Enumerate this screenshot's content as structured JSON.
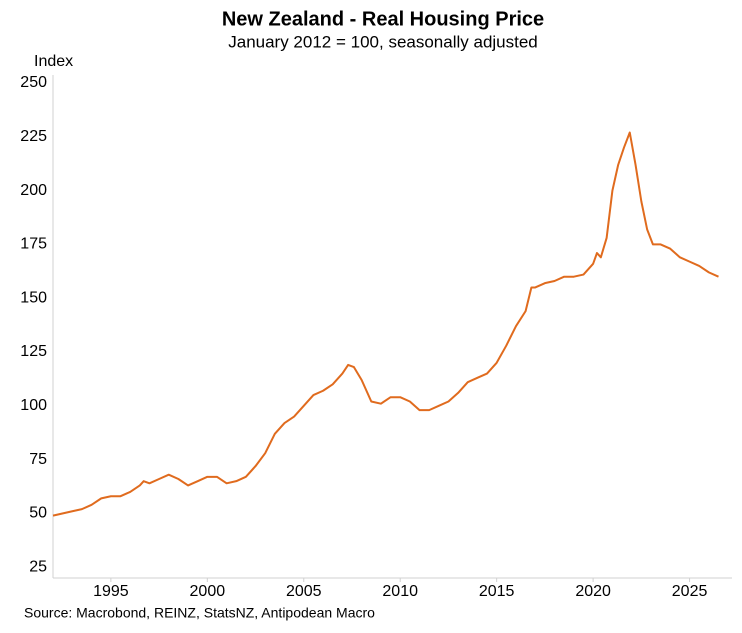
{
  "chart_data": {
    "type": "line",
    "title": "New Zealand - Real Housing Price",
    "subtitle": "January 2012 = 100, seasonally adjusted",
    "y_axis_label": "Index",
    "source": "Source: Macrobond, REINZ, StatsNZ, Antipodean Macro",
    "x": [
      1992.0,
      1993.0,
      1993.5,
      1994.0,
      1994.5,
      1995.0,
      1995.5,
      1996.0,
      1996.5,
      1996.7,
      1997.0,
      1997.5,
      1998.0,
      1998.5,
      1999.0,
      1999.5,
      2000.0,
      2000.5,
      2001.0,
      2001.5,
      2002.0,
      2002.5,
      2003.0,
      2003.5,
      2004.0,
      2004.5,
      2005.0,
      2005.5,
      2006.0,
      2006.5,
      2007.0,
      2007.3,
      2007.6,
      2008.0,
      2008.5,
      2009.0,
      2009.5,
      2010.0,
      2010.5,
      2011.0,
      2011.5,
      2012.0,
      2012.5,
      2013.0,
      2013.5,
      2014.0,
      2014.5,
      2015.0,
      2015.5,
      2016.0,
      2016.5,
      2016.8,
      2017.0,
      2017.5,
      2018.0,
      2018.5,
      2019.0,
      2019.5,
      2020.0,
      2020.2,
      2020.4,
      2020.7,
      2021.0,
      2021.3,
      2021.6,
      2021.9,
      2022.2,
      2022.5,
      2022.8,
      2023.1,
      2023.5,
      2024.0,
      2024.5,
      2025.0,
      2025.5,
      2026.0,
      2026.5
    ],
    "series": [
      {
        "name": "Real Housing Price",
        "color": "#e06b1e",
        "values": [
          49,
          51,
          52,
          54,
          57,
          58,
          58,
          60,
          63,
          65,
          64,
          66,
          68,
          66,
          63,
          65,
          67,
          67,
          64,
          65,
          67,
          72,
          78,
          87,
          92,
          95,
          100,
          105,
          107,
          110,
          115,
          119,
          118,
          112,
          102,
          101,
          104,
          104,
          102,
          98,
          98,
          100,
          102,
          106,
          111,
          113,
          115,
          120,
          128,
          137,
          144,
          155,
          155,
          157,
          158,
          160,
          160,
          161,
          166,
          171,
          169,
          178,
          200,
          212,
          220,
          227,
          212,
          195,
          182,
          175,
          175,
          173,
          169,
          167,
          165,
          162,
          160
        ]
      }
    ],
    "xlim": [
      1992,
      2027.2
    ],
    "xticks": [
      1995,
      2000,
      2005,
      2010,
      2015,
      2020,
      2025
    ],
    "ylim": [
      20,
      250
    ],
    "yticks": [
      25,
      50,
      75,
      100,
      125,
      150,
      175,
      200,
      225,
      250
    ],
    "grid": false
  }
}
